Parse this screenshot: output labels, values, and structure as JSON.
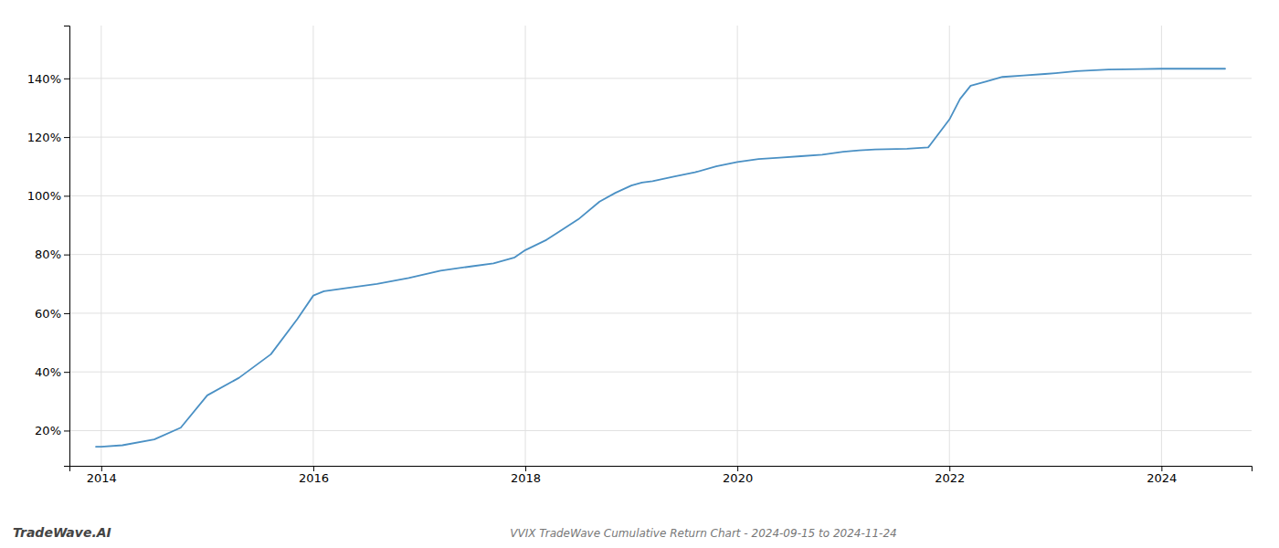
{
  "chart_data": {
    "type": "line",
    "title": "VVIX TradeWave Cumulative Return Chart - 2024-09-15 to 2024-11-24",
    "annotations": [
      "TradeWave.AI"
    ],
    "color": "#4a90c4",
    "grid": true,
    "x": [
      2013.95,
      2014.0,
      2014.2,
      2014.5,
      2014.75,
      2015.0,
      2015.3,
      2015.6,
      2015.85,
      2016.0,
      2016.1,
      2016.3,
      2016.6,
      2016.9,
      2017.2,
      2017.5,
      2017.7,
      2017.9,
      2018.0,
      2018.2,
      2018.5,
      2018.7,
      2018.85,
      2019.0,
      2019.1,
      2019.2,
      2019.4,
      2019.6,
      2019.8,
      2020.0,
      2020.2,
      2020.4,
      2020.6,
      2020.8,
      2021.0,
      2021.15,
      2021.3,
      2021.6,
      2021.8,
      2022.0,
      2022.1,
      2022.2,
      2022.35,
      2022.5,
      2022.7,
      2022.9,
      2023.0,
      2023.2,
      2023.5,
      2023.8,
      2024.0,
      2024.2,
      2024.6
    ],
    "values": [
      14.5,
      14.5,
      15.0,
      17.0,
      21.0,
      32.0,
      38.0,
      46.0,
      58.0,
      66.0,
      67.5,
      68.5,
      70.0,
      72.0,
      74.5,
      76.0,
      77.0,
      79.0,
      81.5,
      85.0,
      92.0,
      98.0,
      101.0,
      103.5,
      104.5,
      105.0,
      106.5,
      108.0,
      110.0,
      111.5,
      112.5,
      113.0,
      113.5,
      114.0,
      115.0,
      115.5,
      115.8,
      116.0,
      116.5,
      126.0,
      133.0,
      137.5,
      139.0,
      140.5,
      141.0,
      141.5,
      141.8,
      142.5,
      143.0,
      143.2,
      143.3,
      143.3,
      143.3
    ],
    "xlim": [
      2013.7,
      2024.85
    ],
    "ylim": [
      8,
      158
    ],
    "xticks": [
      2014,
      2016,
      2018,
      2020,
      2022,
      2024
    ],
    "yticks": [
      {
        "value": 20,
        "label": "20%"
      },
      {
        "value": 40,
        "label": "40%"
      },
      {
        "value": 60,
        "label": "60%"
      },
      {
        "value": 80,
        "label": "80%"
      },
      {
        "value": 100,
        "label": "100%"
      },
      {
        "value": 120,
        "label": "120%"
      },
      {
        "value": 140,
        "label": "140%"
      }
    ]
  }
}
